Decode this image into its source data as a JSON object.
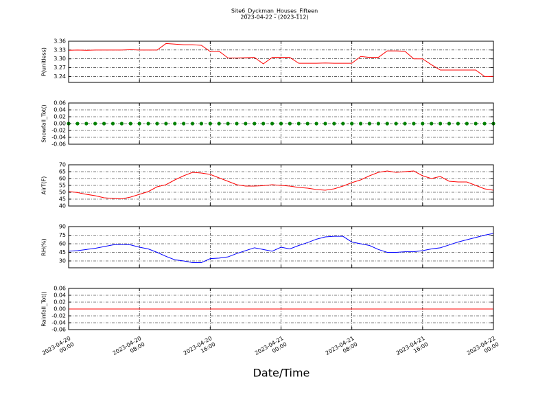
{
  "title": "Site6_Dyckman_Houses_Fifteen",
  "subtitle": "2023-04-22 - (2023-112)",
  "xlabel": "Date/Time",
  "chart_data": [
    {
      "type": "line",
      "ylabel": "P(unitless)",
      "color": "#ff0000",
      "grid": true,
      "xlim": [
        "2023-04-20 00:00",
        "2023-04-22 00:00"
      ],
      "xticks": [
        "2023-04-20 00:00",
        "2023-04-20 08:00",
        "2023-04-20 16:00",
        "2023-04-21 00:00",
        "2023-04-21 08:00",
        "2023-04-21 16:00",
        "2023-04-22 00:00"
      ],
      "ylim": [
        3.22,
        3.36
      ],
      "yticks": [
        3.24,
        3.27,
        {
          "value": 3.3,
          "label": "3.30"
        },
        3.33,
        3.36
      ],
      "x": [
        "2023-04-20 00:00",
        "2023-04-20 01:00",
        "2023-04-20 02:00",
        "2023-04-20 03:00",
        "2023-04-20 04:00",
        "2023-04-20 05:00",
        "2023-04-20 06:00",
        "2023-04-20 07:00",
        "2023-04-20 08:00",
        "2023-04-20 09:00",
        "2023-04-20 10:00",
        "2023-04-20 11:00",
        "2023-04-20 12:00",
        "2023-04-20 13:00",
        "2023-04-20 14:00",
        "2023-04-20 15:00",
        "2023-04-20 16:00",
        "2023-04-20 17:00",
        "2023-04-20 18:00",
        "2023-04-20 19:00",
        "2023-04-20 20:00",
        "2023-04-20 21:00",
        "2023-04-20 22:00",
        "2023-04-20 23:00",
        "2023-04-21 00:00",
        "2023-04-21 01:00",
        "2023-04-21 02:00",
        "2023-04-21 03:00",
        "2023-04-21 04:00",
        "2023-04-21 05:00",
        "2023-04-21 06:00",
        "2023-04-21 07:00",
        "2023-04-21 08:00",
        "2023-04-21 09:00",
        "2023-04-21 10:00",
        "2023-04-21 11:00",
        "2023-04-21 12:00",
        "2023-04-21 13:00",
        "2023-04-21 14:00",
        "2023-04-21 15:00",
        "2023-04-21 16:00",
        "2023-04-21 17:00",
        "2023-04-21 18:00",
        "2023-04-21 19:00",
        "2023-04-21 20:00",
        "2023-04-21 21:00",
        "2023-04-21 22:00",
        "2023-04-21 23:00",
        "2023-04-22 00:00"
      ],
      "values": [
        3.329,
        3.33,
        3.329,
        3.33,
        3.33,
        3.33,
        3.33,
        3.331,
        3.33,
        3.33,
        3.33,
        3.352,
        3.35,
        3.348,
        3.348,
        3.346,
        3.325,
        3.326,
        3.303,
        3.303,
        3.304,
        3.305,
        3.283,
        3.305,
        3.305,
        3.305,
        3.285,
        3.285,
        3.285,
        3.286,
        3.285,
        3.285,
        3.285,
        3.308,
        3.305,
        3.305,
        3.327,
        3.327,
        3.326,
        3.3,
        3.3,
        3.28,
        3.262,
        3.262,
        3.262,
        3.262,
        3.262,
        3.24,
        3.24
      ]
    },
    {
      "type": "scatter",
      "ylabel": "Snowfall_Tot()",
      "color": "#008000",
      "grid": true,
      "xlim": [
        "2023-04-20 00:00",
        "2023-04-22 00:00"
      ],
      "xticks": [
        "2023-04-20 00:00",
        "2023-04-20 08:00",
        "2023-04-20 16:00",
        "2023-04-21 00:00",
        "2023-04-21 08:00",
        "2023-04-21 16:00",
        "2023-04-22 00:00"
      ],
      "ylim": [
        -0.06,
        0.06
      ],
      "yticks": [
        -0.06,
        -0.04,
        -0.02,
        {
          "value": 0,
          "label": "0.00"
        },
        0.02,
        0.04,
        0.06
      ],
      "x": [
        "2023-04-20 00:00",
        "2023-04-20 01:00",
        "2023-04-20 02:00",
        "2023-04-20 03:00",
        "2023-04-20 04:00",
        "2023-04-20 05:00",
        "2023-04-20 06:00",
        "2023-04-20 07:00",
        "2023-04-20 08:00",
        "2023-04-20 09:00",
        "2023-04-20 10:00",
        "2023-04-20 11:00",
        "2023-04-20 12:00",
        "2023-04-20 13:00",
        "2023-04-20 14:00",
        "2023-04-20 15:00",
        "2023-04-20 16:00",
        "2023-04-20 17:00",
        "2023-04-20 18:00",
        "2023-04-20 19:00",
        "2023-04-20 20:00",
        "2023-04-20 21:00",
        "2023-04-20 22:00",
        "2023-04-20 23:00",
        "2023-04-21 00:00",
        "2023-04-21 01:00",
        "2023-04-21 02:00",
        "2023-04-21 03:00",
        "2023-04-21 04:00",
        "2023-04-21 05:00",
        "2023-04-21 06:00",
        "2023-04-21 07:00",
        "2023-04-21 08:00",
        "2023-04-21 09:00",
        "2023-04-21 10:00",
        "2023-04-21 11:00",
        "2023-04-21 12:00",
        "2023-04-21 13:00",
        "2023-04-21 14:00",
        "2023-04-21 15:00",
        "2023-04-21 16:00",
        "2023-04-21 17:00",
        "2023-04-21 18:00",
        "2023-04-21 19:00",
        "2023-04-21 20:00",
        "2023-04-21 21:00",
        "2023-04-21 22:00",
        "2023-04-21 23:00",
        "2023-04-22 00:00"
      ],
      "values": [
        0,
        0,
        0,
        0,
        0,
        0,
        0,
        0,
        0,
        0,
        0,
        0,
        0,
        0,
        0,
        0,
        0,
        0,
        0,
        0,
        0,
        0,
        0,
        0,
        0,
        0,
        0,
        0,
        0,
        0,
        0,
        0,
        0,
        0,
        0,
        0,
        0,
        0,
        0,
        0,
        0,
        0,
        0,
        0,
        0,
        0,
        0,
        0,
        0
      ]
    },
    {
      "type": "line",
      "ylabel": "AirT(F)",
      "color": "#ff0000",
      "grid": true,
      "xlim": [
        "2023-04-20 00:00",
        "2023-04-22 00:00"
      ],
      "xticks": [
        "2023-04-20 00:00",
        "2023-04-20 08:00",
        "2023-04-20 16:00",
        "2023-04-21 00:00",
        "2023-04-21 08:00",
        "2023-04-21 16:00",
        "2023-04-22 00:00"
      ],
      "ylim": [
        40,
        70
      ],
      "yticks": [
        40,
        45,
        50,
        55,
        60,
        65,
        70
      ],
      "x": [
        "2023-04-20 00:00",
        "2023-04-20 01:00",
        "2023-04-20 02:00",
        "2023-04-20 03:00",
        "2023-04-20 04:00",
        "2023-04-20 05:00",
        "2023-04-20 06:00",
        "2023-04-20 07:00",
        "2023-04-20 08:00",
        "2023-04-20 09:00",
        "2023-04-20 10:00",
        "2023-04-20 11:00",
        "2023-04-20 12:00",
        "2023-04-20 13:00",
        "2023-04-20 14:00",
        "2023-04-20 15:00",
        "2023-04-20 16:00",
        "2023-04-20 17:00",
        "2023-04-20 18:00",
        "2023-04-20 19:00",
        "2023-04-20 20:00",
        "2023-04-20 21:00",
        "2023-04-20 22:00",
        "2023-04-20 23:00",
        "2023-04-21 00:00",
        "2023-04-21 01:00",
        "2023-04-21 02:00",
        "2023-04-21 03:00",
        "2023-04-21 04:00",
        "2023-04-21 05:00",
        "2023-04-21 06:00",
        "2023-04-21 07:00",
        "2023-04-21 08:00",
        "2023-04-21 09:00",
        "2023-04-21 10:00",
        "2023-04-21 11:00",
        "2023-04-21 12:00",
        "2023-04-21 13:00",
        "2023-04-21 14:00",
        "2023-04-21 15:00",
        "2023-04-21 16:00",
        "2023-04-21 17:00",
        "2023-04-21 18:00",
        "2023-04-21 19:00",
        "2023-04-21 20:00",
        "2023-04-21 21:00",
        "2023-04-21 22:00",
        "2023-04-21 23:00",
        "2023-04-22 00:00"
      ],
      "values": [
        50.5,
        49.8,
        48.5,
        47.5,
        46,
        45.5,
        45.2,
        46.5,
        48.5,
        50.5,
        54,
        55.5,
        59,
        62,
        64.5,
        64,
        63,
        60.5,
        58,
        55.5,
        54.5,
        54.5,
        54.8,
        55.5,
        55,
        54.5,
        53.5,
        53,
        52,
        51.5,
        52.5,
        54.5,
        57,
        59,
        62,
        64.5,
        65.5,
        64.5,
        65,
        65.5,
        62,
        60,
        61.5,
        58,
        57.5,
        57.5,
        55,
        52.5,
        51.5
      ]
    },
    {
      "type": "line",
      "ylabel": "RH(%)",
      "color": "#0000ff",
      "grid": true,
      "xlim": [
        "2023-04-20 00:00",
        "2023-04-22 00:00"
      ],
      "xticks": [
        "2023-04-20 00:00",
        "2023-04-20 08:00",
        "2023-04-20 16:00",
        "2023-04-21 00:00",
        "2023-04-21 08:00",
        "2023-04-21 16:00",
        "2023-04-22 00:00"
      ],
      "ylim": [
        18,
        90
      ],
      "yticks": [
        30,
        45,
        60,
        75,
        90
      ],
      "x": [
        "2023-04-20 00:00",
        "2023-04-20 01:00",
        "2023-04-20 02:00",
        "2023-04-20 03:00",
        "2023-04-20 04:00",
        "2023-04-20 05:00",
        "2023-04-20 06:00",
        "2023-04-20 07:00",
        "2023-04-20 08:00",
        "2023-04-20 09:00",
        "2023-04-20 10:00",
        "2023-04-20 11:00",
        "2023-04-20 12:00",
        "2023-04-20 13:00",
        "2023-04-20 14:00",
        "2023-04-20 15:00",
        "2023-04-20 16:00",
        "2023-04-20 17:00",
        "2023-04-20 18:00",
        "2023-04-20 19:00",
        "2023-04-20 20:00",
        "2023-04-20 21:00",
        "2023-04-20 22:00",
        "2023-04-20 23:00",
        "2023-04-21 00:00",
        "2023-04-21 01:00",
        "2023-04-21 02:00",
        "2023-04-21 03:00",
        "2023-04-21 04:00",
        "2023-04-21 05:00",
        "2023-04-21 06:00",
        "2023-04-21 07:00",
        "2023-04-21 08:00",
        "2023-04-21 09:00",
        "2023-04-21 10:00",
        "2023-04-21 11:00",
        "2023-04-21 12:00",
        "2023-04-21 13:00",
        "2023-04-21 14:00",
        "2023-04-21 15:00",
        "2023-04-21 16:00",
        "2023-04-21 17:00",
        "2023-04-21 18:00",
        "2023-04-21 19:00",
        "2023-04-21 20:00",
        "2023-04-21 21:00",
        "2023-04-21 22:00",
        "2023-04-21 23:00",
        "2023-04-22 00:00"
      ],
      "values": [
        47,
        48,
        50,
        52,
        55,
        58,
        59,
        58,
        54,
        51,
        45,
        38,
        32,
        30,
        27,
        27,
        34,
        35,
        37,
        43,
        48,
        53,
        50,
        47,
        54,
        51,
        57,
        62,
        68,
        72,
        73,
        73,
        63,
        60,
        57,
        50,
        45,
        45,
        46,
        46,
        48,
        51,
        53,
        58,
        63,
        67,
        71,
        75,
        78
      ]
    },
    {
      "type": "line",
      "ylabel": "Rainfall_Tot()",
      "color": "#ff0000",
      "grid": true,
      "xlim": [
        "2023-04-20 00:00",
        "2023-04-22 00:00"
      ],
      "xticks": [
        "2023-04-20 00:00",
        "2023-04-20 08:00",
        "2023-04-20 16:00",
        "2023-04-21 00:00",
        "2023-04-21 08:00",
        "2023-04-21 16:00",
        "2023-04-22 00:00"
      ],
      "ylim": [
        -0.06,
        0.06
      ],
      "yticks": [
        -0.06,
        -0.04,
        -0.02,
        {
          "value": 0,
          "label": "0.00"
        },
        0.02,
        0.04,
        0.06
      ],
      "x": [
        "2023-04-20 00:00",
        "2023-04-20 01:00",
        "2023-04-20 02:00",
        "2023-04-20 03:00",
        "2023-04-20 04:00",
        "2023-04-20 05:00",
        "2023-04-20 06:00",
        "2023-04-20 07:00",
        "2023-04-20 08:00",
        "2023-04-20 09:00",
        "2023-04-20 10:00",
        "2023-04-20 11:00",
        "2023-04-20 12:00",
        "2023-04-20 13:00",
        "2023-04-20 14:00",
        "2023-04-20 15:00",
        "2023-04-20 16:00",
        "2023-04-20 17:00",
        "2023-04-20 18:00",
        "2023-04-20 19:00",
        "2023-04-20 20:00",
        "2023-04-20 21:00",
        "2023-04-20 22:00",
        "2023-04-20 23:00",
        "2023-04-21 00:00",
        "2023-04-21 01:00",
        "2023-04-21 02:00",
        "2023-04-21 03:00",
        "2023-04-21 04:00",
        "2023-04-21 05:00",
        "2023-04-21 06:00",
        "2023-04-21 07:00",
        "2023-04-21 08:00",
        "2023-04-21 09:00",
        "2023-04-21 10:00",
        "2023-04-21 11:00",
        "2023-04-21 12:00",
        "2023-04-21 13:00",
        "2023-04-21 14:00",
        "2023-04-21 15:00",
        "2023-04-21 16:00",
        "2023-04-21 17:00",
        "2023-04-21 18:00",
        "2023-04-21 19:00",
        "2023-04-21 20:00",
        "2023-04-21 21:00",
        "2023-04-21 22:00",
        "2023-04-21 23:00",
        "2023-04-22 00:00"
      ],
      "values": [
        0,
        0,
        0,
        0,
        0,
        0,
        0,
        0,
        0,
        0,
        0,
        0,
        0,
        0,
        0,
        0,
        0,
        0,
        0,
        0,
        0,
        0,
        0,
        0,
        0,
        0,
        0,
        0,
        0,
        0,
        0,
        0,
        0,
        0,
        0,
        0,
        0,
        0,
        0,
        0,
        0,
        0,
        0,
        0,
        0,
        0,
        0,
        0,
        0
      ]
    }
  ]
}
